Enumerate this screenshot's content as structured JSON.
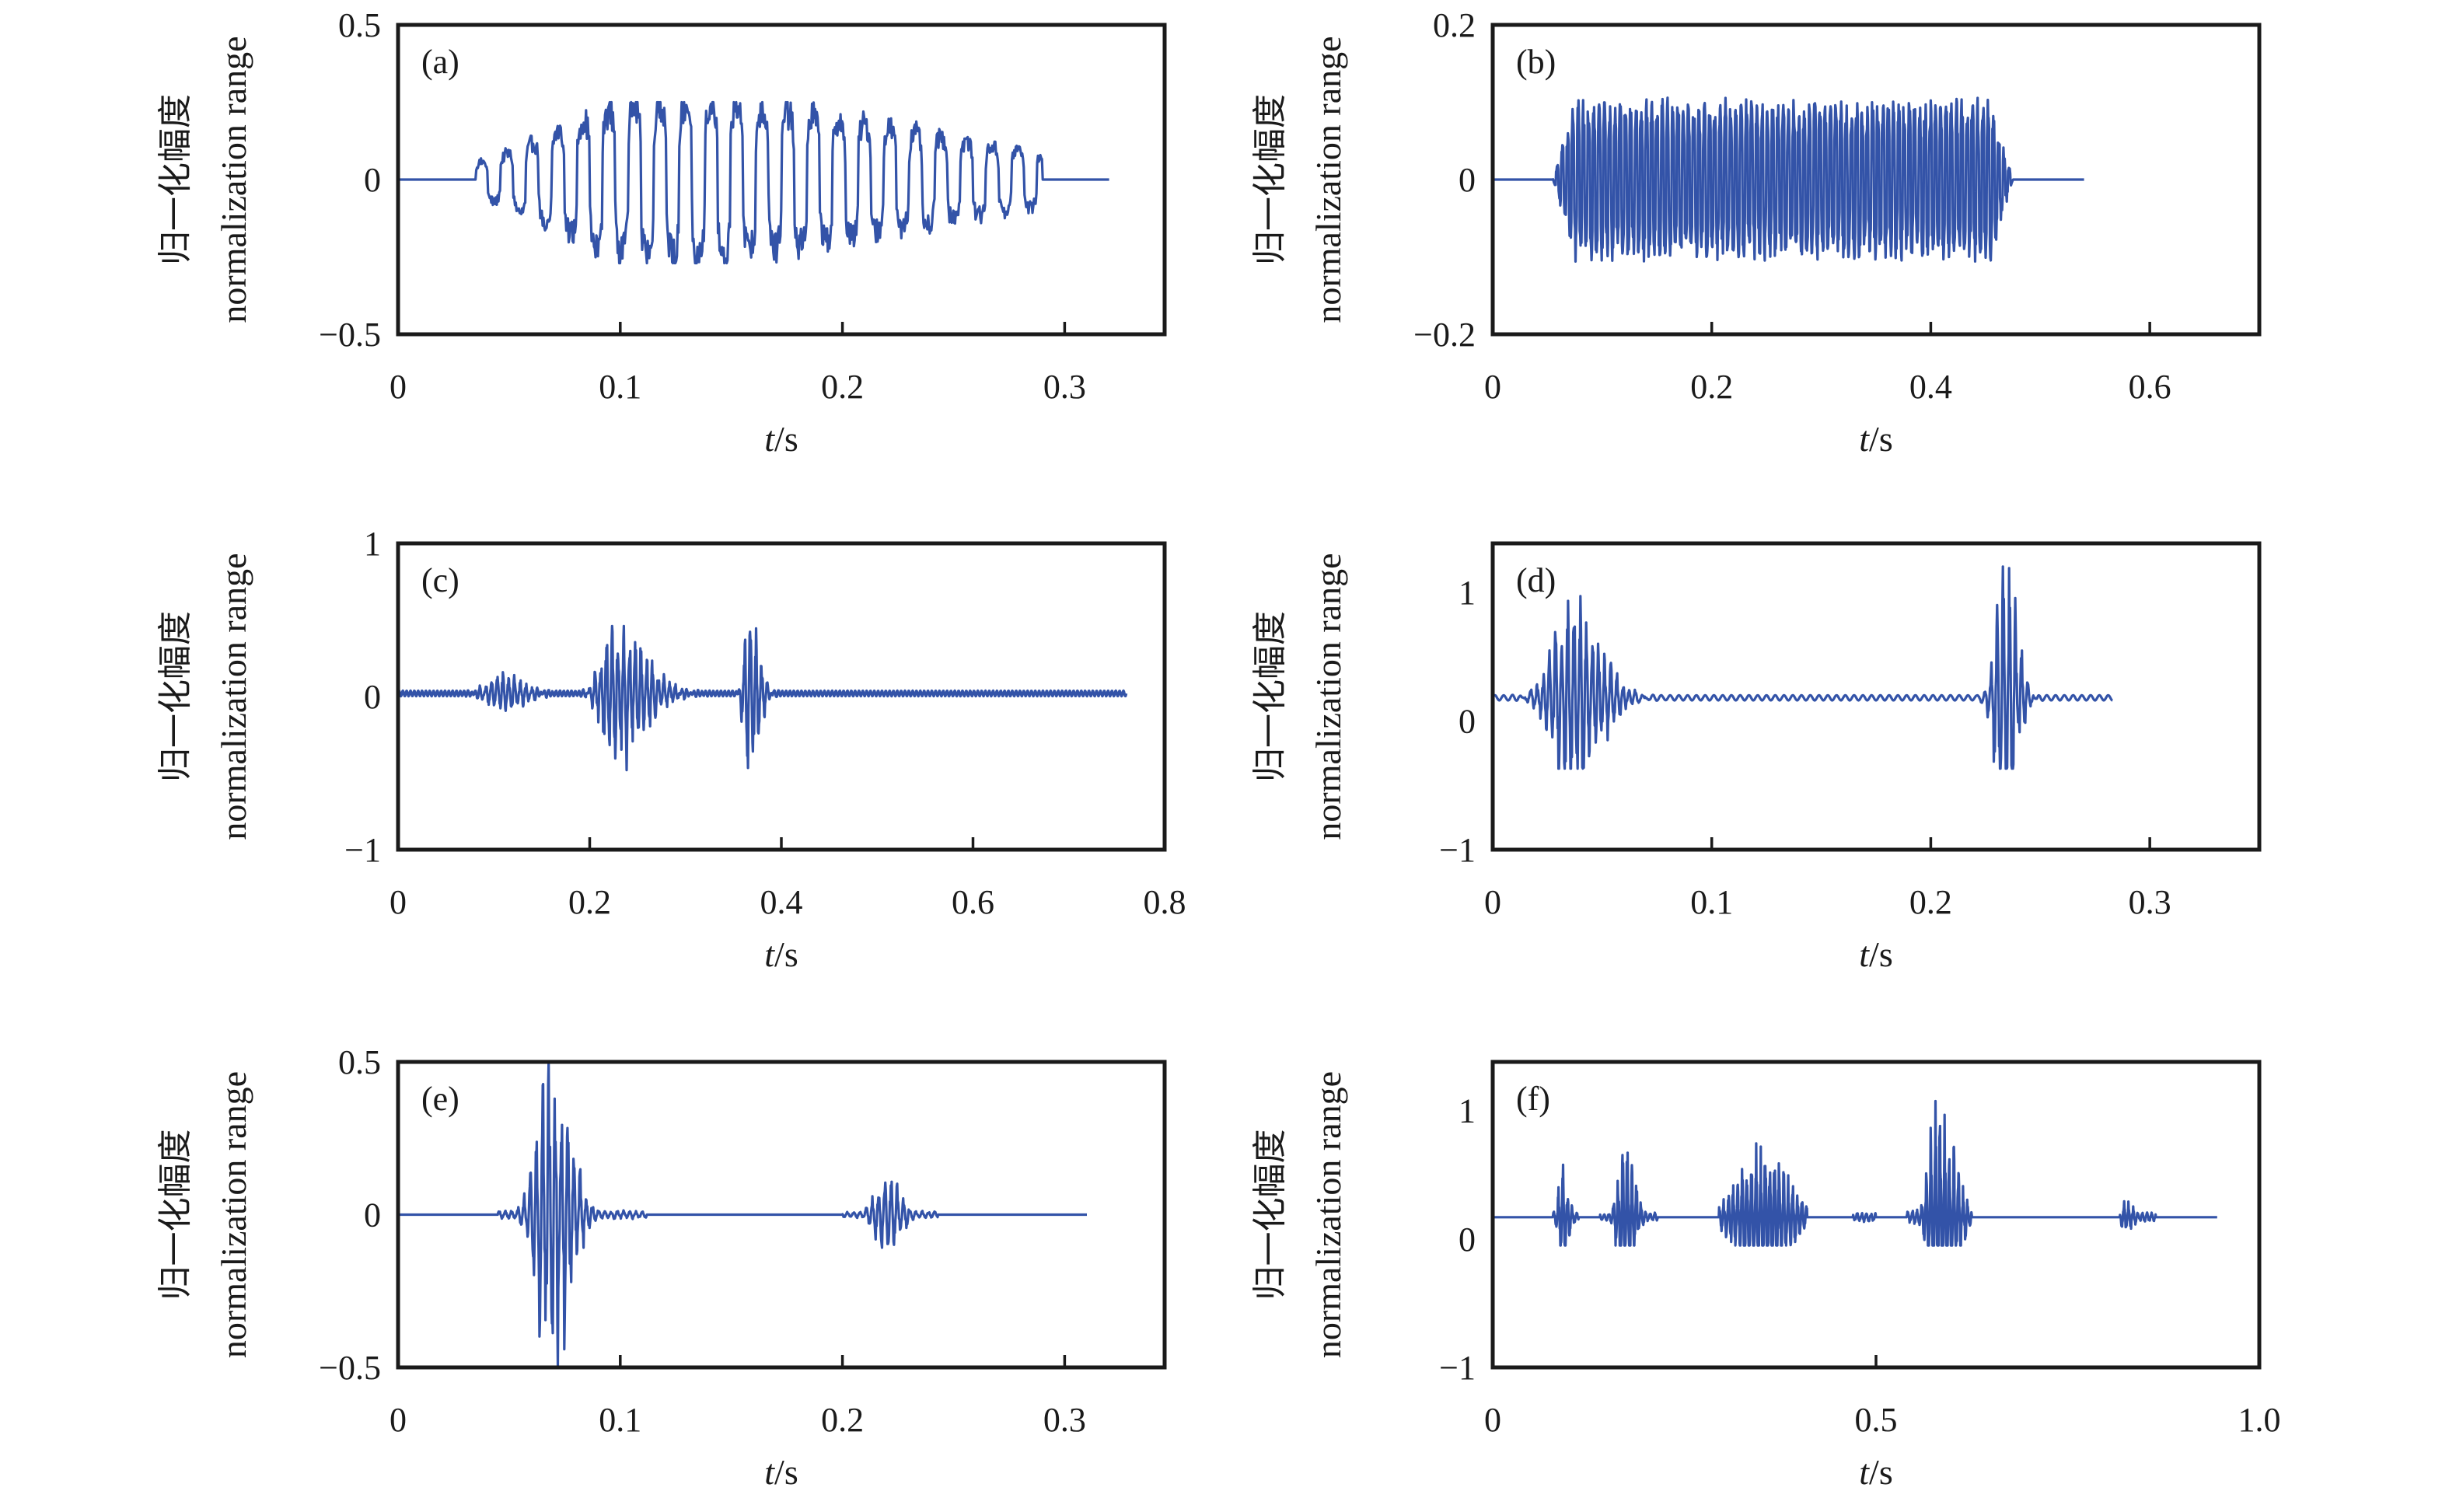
{
  "figure": {
    "line_color": "#3353A8",
    "axis_color": "#1a1a1a"
  },
  "chart_data": [
    {
      "id": "a",
      "type": "line",
      "panel_label": "(a)",
      "xlabel_italic": "t",
      "xlabel_unit": "/s",
      "ylabel_cn": "归一化幅度",
      "ylabel_en": "normalization range",
      "xlim": [
        0,
        0.345
      ],
      "ylim": [
        -0.5,
        0.5
      ],
      "xticks": [
        0,
        0.1,
        0.2,
        0.3
      ],
      "xtick_labels": [
        "0",
        "0.1",
        "0.2",
        "0.3"
      ],
      "yticks": [
        0.5,
        0,
        -0.5
      ],
      "ytick_labels": [
        "0.5",
        "0",
        "−0.5"
      ],
      "signal": {
        "t_start": 0,
        "t_end": 0.32,
        "baseline": 0,
        "samples": 900,
        "carrier_period": 0.0115,
        "style": "square",
        "bursts": [
          {
            "center": 0.115,
            "amplitude": 0.245,
            "rise": 0.045,
            "decay": 0.12,
            "onset": 0.035,
            "offset": 0.29
          }
        ],
        "peak_max": 0.25,
        "peak_min": -0.27
      }
    },
    {
      "id": "b",
      "type": "line",
      "panel_label": "(b)",
      "xlabel_italic": "t",
      "xlabel_unit": "/s",
      "ylabel_cn": "归一化幅度",
      "ylabel_en": "normalization range",
      "xlim": [
        0,
        0.7
      ],
      "ylim": [
        -0.2,
        0.2
      ],
      "xticks": [
        0,
        0.2,
        0.4,
        0.6
      ],
      "xtick_labels": [
        "0",
        "0.2",
        "0.4",
        "0.6"
      ],
      "yticks": [
        0.2,
        0,
        -0.2
      ],
      "ytick_labels": [
        "0.2",
        "0",
        "−0.2"
      ],
      "signal": {
        "t_start": 0,
        "t_end": 0.54,
        "baseline": 0,
        "samples": 1400,
        "carrier_period": 0.0048,
        "style": "square",
        "bursts": [
          {
            "center": 0.27,
            "amplitude": 0.085,
            "rise": 0.02,
            "decay": 0.02,
            "onset": 0.055,
            "offset": 0.475,
            "flat": true
          }
        ],
        "peak_max": 0.11,
        "peak_min": -0.115
      }
    },
    {
      "id": "c",
      "type": "line",
      "panel_label": "(c)",
      "xlabel_italic": "t",
      "xlabel_unit": "/s",
      "ylabel_cn": "归一化幅度",
      "ylabel_en": "normalization range",
      "xlim": [
        0,
        0.8
      ],
      "ylim": [
        -1,
        1
      ],
      "xticks": [
        0,
        0.2,
        0.4,
        0.6,
        0.8
      ],
      "xtick_labels": [
        "0",
        "0.2",
        "0.4",
        "0.6",
        "0.8"
      ],
      "yticks": [
        1,
        0,
        -1
      ],
      "ytick_labels": [
        "1",
        "0",
        "−1"
      ],
      "signal": {
        "t_start": 0,
        "t_end": 0.76,
        "baseline": 0.02,
        "samples": 1800,
        "carrier_period": 0.006,
        "style": "spiky",
        "noise": 0.018,
        "bursts": [
          {
            "center": 0.11,
            "amplitude": 0.12,
            "rise": 0.015,
            "decay": 0.02
          },
          {
            "center": 0.225,
            "amplitude": 0.45,
            "rise": 0.012,
            "decay": 0.03
          },
          {
            "center": 0.365,
            "amplitude": 0.58,
            "rise": 0.004,
            "decay": 0.01
          }
        ],
        "peak_max": 0.44,
        "peak_min": -0.58
      }
    },
    {
      "id": "d",
      "type": "line",
      "panel_label": "(d)",
      "xlabel_italic": "t",
      "xlabel_unit": "/s",
      "ylabel_cn": "归一化幅度",
      "ylabel_en": "normalization range",
      "xlim": [
        0,
        0.35
      ],
      "ylim": [
        -1,
        1.38
      ],
      "xticks": [
        0,
        0.1,
        0.2,
        0.3
      ],
      "xtick_labels": [
        "0",
        "0.1",
        "0.2",
        "0.3"
      ],
      "yticks": [
        1,
        0,
        -1
      ],
      "ytick_labels": [
        "1",
        "0",
        "−1"
      ],
      "signal": {
        "t_start": 0,
        "t_end": 0.283,
        "baseline": 0.18,
        "samples": 1300,
        "carrier_period": 0.0028,
        "style": "spiky",
        "noise": 0.02,
        "bursts": [
          {
            "center": 0.036,
            "amplitude": 0.72,
            "rise": 0.008,
            "decay": 0.012
          },
          {
            "center": 0.234,
            "amplitude": 1.0,
            "rise": 0.004,
            "decay": 0.005
          }
        ],
        "peak_max": 1.02,
        "peak_min": -0.55
      }
    },
    {
      "id": "e",
      "type": "line",
      "panel_label": "(e)",
      "xlabel_italic": "t",
      "xlabel_unit": "/s",
      "ylabel_cn": "归一化幅度",
      "ylabel_en": "normalization range",
      "xlim": [
        0,
        0.345
      ],
      "ylim": [
        -0.5,
        0.5
      ],
      "xticks": [
        0,
        0.1,
        0.2,
        0.3
      ],
      "xtick_labels": [
        "0",
        "0.1",
        "0.2",
        "0.3"
      ],
      "yticks": [
        0.5,
        0,
        -0.5
      ],
      "ytick_labels": [
        "0.5",
        "0",
        "−0.5"
      ],
      "signal": {
        "t_start": 0,
        "t_end": 0.31,
        "baseline": 0,
        "samples": 1500,
        "carrier_period": 0.0028,
        "style": "spiky",
        "noise": 0,
        "bursts": [
          {
            "center": 0.069,
            "amplitude": 0.5,
            "rise": 0.006,
            "decay": 0.008,
            "onset": 0.045,
            "offset": 0.112,
            "floor": 0.012
          },
          {
            "center": 0.22,
            "amplitude": 0.12,
            "rise": 0.005,
            "decay": 0.006,
            "onset": 0.2,
            "offset": 0.243,
            "floor": 0.01
          }
        ],
        "peak_max": 0.5,
        "peak_min": -0.5
      }
    },
    {
      "id": "f",
      "type": "line",
      "panel_label": "(f)",
      "xlabel_italic": "t",
      "xlabel_unit": "/s",
      "ylabel_cn": "归一化幅度",
      "ylabel_en": "normalization range",
      "xlim": [
        0,
        1.0
      ],
      "ylim": [
        -1,
        1.38
      ],
      "xticks": [
        0,
        0.5,
        1.0
      ],
      "xtick_labels": [
        "0",
        "0.5",
        "1.0"
      ],
      "yticks": [
        1,
        0,
        -1
      ],
      "ytick_labels": [
        "1",
        "0",
        "−1"
      ],
      "signal": {
        "t_start": 0,
        "t_end": 0.945,
        "baseline": 0.17,
        "samples": 2400,
        "carrier_period": 0.006,
        "style": "spiky",
        "noise": 0,
        "bursts": [
          {
            "center": 0.09,
            "amplitude": 0.35,
            "rise": 0.004,
            "decay": 0.008,
            "onset": 0.078,
            "offset": 0.112,
            "floor": 0.04
          },
          {
            "center": 0.172,
            "amplitude": 0.55,
            "rise": 0.008,
            "decay": 0.012,
            "onset": 0.14,
            "offset": 0.215,
            "floor": 0.03
          },
          {
            "center": 0.352,
            "amplitude": 0.5,
            "rise": 0.03,
            "decay": 0.03,
            "onset": 0.295,
            "offset": 0.41,
            "floor": 0.05
          },
          {
            "center": 0.485,
            "amplitude": 0.03,
            "rise": 0.01,
            "decay": 0.01,
            "onset": 0.47,
            "offset": 0.5,
            "floor": 0.03
          },
          {
            "center": 0.58,
            "amplitude": 0.85,
            "rise": 0.01,
            "decay": 0.02,
            "onset": 0.54,
            "offset": 0.625,
            "floor": 0.05
          },
          {
            "center": 0.825,
            "amplitude": 0.12,
            "rise": 0.005,
            "decay": 0.01,
            "onset": 0.818,
            "offset": 0.865,
            "floor": 0.03
          }
        ],
        "peak_max": 1.02,
        "peak_min": -0.22
      }
    }
  ]
}
